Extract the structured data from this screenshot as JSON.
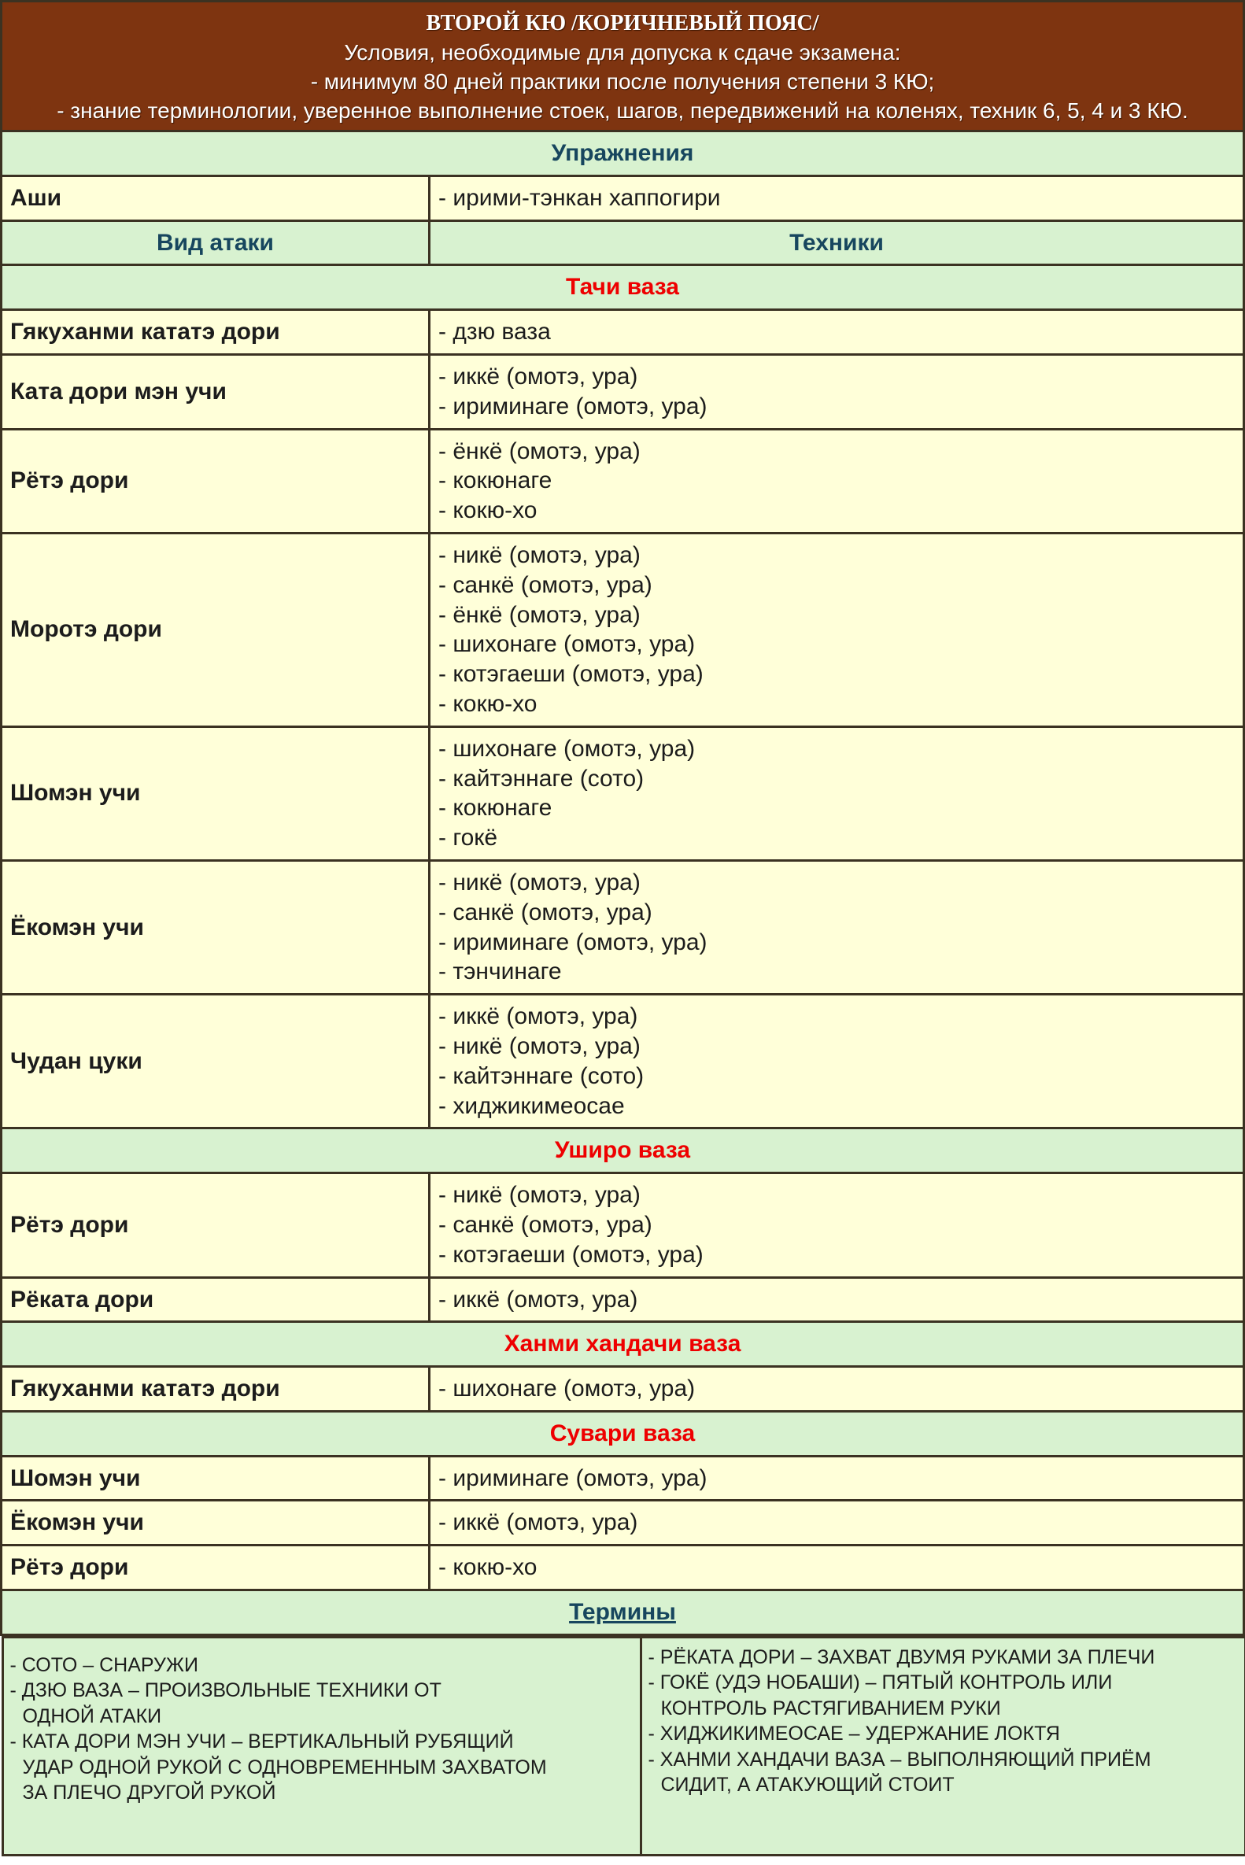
{
  "header": {
    "title": "ВТОРОЙ КЮ /КОРИЧНЕВЫЙ ПОЯС/",
    "lines": [
      "Условия, необходимые для допуска к сдаче экзамена:",
      "- минимум 80 дней практики после получения степени 3 КЮ;",
      "- знание терминологии, уверенное выполнение стоек, шагов, передвижений на коленях, техник 6, 5, 4 и 3 КЮ."
    ]
  },
  "exercises": {
    "title": "Упражнения",
    "rows": [
      {
        "label": "Аши",
        "items": [
          "- ирими-тэнкан хаппогири"
        ]
      }
    ]
  },
  "columns": {
    "attack": "Вид атаки",
    "techniques": "Техники"
  },
  "sections": [
    {
      "title": "Тачи ваза",
      "rows": [
        {
          "label": "Гякуханми кататэ дори",
          "items": [
            "- дзю ваза"
          ]
        },
        {
          "label": "Ката дори мэн учи",
          "items": [
            "- иккё (омотэ, ура)",
            "- ириминаге (омотэ, ура)"
          ]
        },
        {
          "label": "Рётэ дори",
          "items": [
            "- ёнкё (омотэ, ура)",
            "- кокюнаге",
            "- кокю-хо"
          ]
        },
        {
          "label": "Моротэ дори",
          "items": [
            "- никё (омотэ, ура)",
            "- санкё (омотэ, ура)",
            "- ёнкё (омотэ, ура)",
            "- шихонаге (омотэ, ура)",
            "- котэгаеши (омотэ, ура)",
            "- кокю-хо"
          ]
        },
        {
          "label": "Шомэн учи",
          "items": [
            "- шихонаге (омотэ, ура)",
            "- кайтэннаге (сото)",
            "- кокюнаге",
            "- гокё"
          ]
        },
        {
          "label": "Ёкомэн учи",
          "items": [
            "- никё (омотэ, ура)",
            "- санкё (омотэ, ура)",
            "- ириминаге (омотэ, ура)",
            "- тэнчинаге"
          ]
        },
        {
          "label": "Чудан цуки",
          "items": [
            "- иккё (омотэ, ура)",
            "- никё (омотэ, ура)",
            "- кайтэннаге (сото)",
            "- хиджикимеосае"
          ]
        }
      ]
    },
    {
      "title": "Уширо ваза",
      "rows": [
        {
          "label": "Рётэ дори",
          "items": [
            "- никё (омотэ, ура)",
            "- санкё (омотэ, ура)",
            "- котэгаеши (омотэ, ура)"
          ]
        },
        {
          "label": "Рёката дори",
          "items": [
            "- иккё (омотэ, ура)"
          ]
        }
      ]
    },
    {
      "title": "Ханми хандачи ваза",
      "rows": [
        {
          "label": "Гякуханми кататэ дори",
          "items": [
            "- шихонаге (омотэ, ура)"
          ]
        }
      ]
    },
    {
      "title": "Сувари ваза",
      "rows": [
        {
          "label": "Шомэн учи",
          "items": [
            "- ириминаге (омотэ, ура)"
          ]
        },
        {
          "label": "Ёкомэн учи",
          "items": [
            "- иккё (омотэ, ура)"
          ]
        },
        {
          "label": "Рётэ дори",
          "items": [
            "- кокю-хо"
          ]
        }
      ]
    }
  ],
  "terms": {
    "title": "Термины",
    "left": [
      {
        "first": "- СОТО – СНАРУЖИ",
        "rest": []
      },
      {
        "first": "- ДЗЮ ВАЗА – ПРОИЗВОЛЬНЫЕ ТЕХНИКИ ОТ",
        "rest": [
          "ОДНОЙ АТАКИ"
        ]
      },
      {
        "first": "- КАТА ДОРИ МЭН УЧИ – ВЕРТИКАЛЬНЫЙ РУБЯЩИЙ",
        "rest": [
          "УДАР ОДНОЙ РУКОЙ С ОДНОВРЕМЕННЫМ ЗАХВАТОМ",
          "ЗА ПЛЕЧО ДРУГОЙ РУКОЙ"
        ]
      }
    ],
    "right": [
      {
        "first": "- РЁКАТА ДОРИ – ЗАХВАТ ДВУМЯ РУКАМИ ЗА ПЛЕЧИ",
        "rest": []
      },
      {
        "first": "- ГОКЁ (УДЭ НОБАШИ) – ПЯТЫЙ КОНТРОЛЬ ИЛИ",
        "rest": [
          "КОНТРОЛЬ РАСТЯГИВАНИЕМ РУКИ"
        ]
      },
      {
        "first": "- ХИДЖИКИМЕОСАЕ – УДЕРЖАНИЕ ЛОКТЯ",
        "rest": []
      },
      {
        "first": "- ХАНМИ ХАНДАЧИ ВАЗА – ВЫПОЛНЯЮЩИЙ ПРИЁМ",
        "rest": [
          "СИДИТ, А АТАКУЮЩИЙ СТОИТ"
        ]
      }
    ]
  },
  "colors": {
    "header_bg": "#7e3410",
    "section_bg": "#d8f2d0",
    "cell_bg": "#ffffd9",
    "heading_blue": "#17465e",
    "section_red": "#ee0000"
  }
}
